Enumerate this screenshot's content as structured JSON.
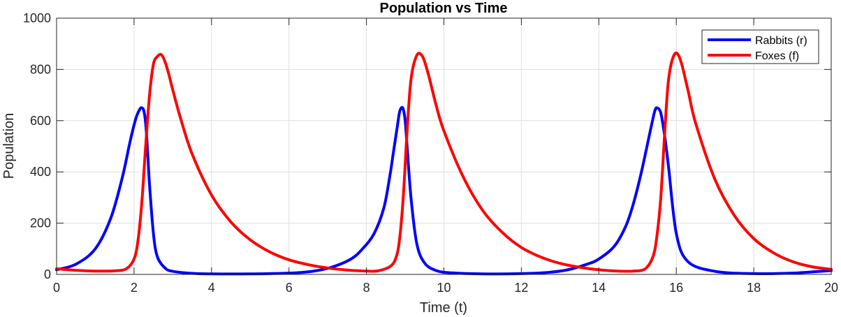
{
  "chart_data": {
    "type": "line",
    "title": "Population vs Time",
    "xlabel": "Time (t)",
    "ylabel": "Population",
    "xlim": [
      0,
      20
    ],
    "ylim": [
      0,
      1000
    ],
    "xticks": [
      0,
      2,
      4,
      6,
      8,
      10,
      12,
      14,
      16,
      18,
      20
    ],
    "yticks": [
      0,
      200,
      400,
      600,
      800,
      1000
    ],
    "grid": true,
    "legend_position": "top-right",
    "series": [
      {
        "name": "Rabbits (r)",
        "color": "#0000ff",
        "x": [
          0,
          0.5,
          1.0,
          1.4,
          1.7,
          1.9,
          2.05,
          2.15,
          2.2,
          2.25,
          2.3,
          2.35,
          2.4,
          2.5,
          2.6,
          2.8,
          3.0,
          3.5,
          4.0,
          5.0,
          6.0,
          6.6,
          7.1,
          7.6,
          7.9,
          8.2,
          8.45,
          8.6,
          8.7,
          8.8,
          8.85,
          8.9,
          8.95,
          9.0,
          9.05,
          9.15,
          9.3,
          9.5,
          9.8,
          10.2,
          11.0,
          12.0,
          12.7,
          13.2,
          13.7,
          14.0,
          14.4,
          14.7,
          14.9,
          15.1,
          15.3,
          15.4,
          15.45,
          15.5,
          15.6,
          15.7,
          15.8,
          16.0,
          16.3,
          17.0,
          18.0,
          19.0,
          20.0
        ],
        "y": [
          18,
          40,
          100,
          220,
          380,
          520,
          610,
          645,
          650,
          640,
          590,
          480,
          350,
          160,
          70,
          25,
          12,
          4,
          2,
          2,
          5,
          12,
          28,
          60,
          100,
          160,
          260,
          380,
          480,
          580,
          630,
          650,
          645,
          600,
          500,
          300,
          120,
          45,
          15,
          6,
          2,
          3,
          8,
          18,
          40,
          60,
          110,
          190,
          280,
          400,
          540,
          610,
          640,
          650,
          630,
          540,
          420,
          160,
          50,
          12,
          3,
          5,
          15
        ]
      },
      {
        "name": "Foxes (f)",
        "color": "#ff0000",
        "x": [
          0,
          0.5,
          1.0,
          1.5,
          1.8,
          2.0,
          2.1,
          2.2,
          2.3,
          2.4,
          2.5,
          2.6,
          2.7,
          2.8,
          2.9,
          3.0,
          3.2,
          3.5,
          4.0,
          4.5,
          5.0,
          5.5,
          6.0,
          6.5,
          7.0,
          7.5,
          8.0,
          8.3,
          8.6,
          8.75,
          8.85,
          8.95,
          9.05,
          9.15,
          9.3,
          9.45,
          9.6,
          9.8,
          10.0,
          10.5,
          11.0,
          11.5,
          12.0,
          12.5,
          13.0,
          13.5,
          14.0,
          14.5,
          14.9,
          15.2,
          15.4,
          15.5,
          15.6,
          15.7,
          15.8,
          15.95,
          16.1,
          16.3,
          16.5,
          17.0,
          17.5,
          18.0,
          18.5,
          19.0,
          19.5,
          20.0
        ],
        "y": [
          22,
          16,
          13,
          14,
          22,
          60,
          130,
          280,
          500,
          700,
          820,
          850,
          858,
          830,
          780,
          720,
          610,
          470,
          310,
          205,
          135,
          88,
          57,
          38,
          25,
          17,
          13,
          14,
          30,
          60,
          130,
          300,
          560,
          760,
          855,
          850,
          780,
          660,
          560,
          380,
          250,
          165,
          105,
          68,
          43,
          28,
          18,
          13,
          13,
          22,
          70,
          150,
          300,
          550,
          760,
          858,
          840,
          720,
          590,
          370,
          230,
          140,
          85,
          50,
          30,
          20
        ]
      }
    ]
  }
}
